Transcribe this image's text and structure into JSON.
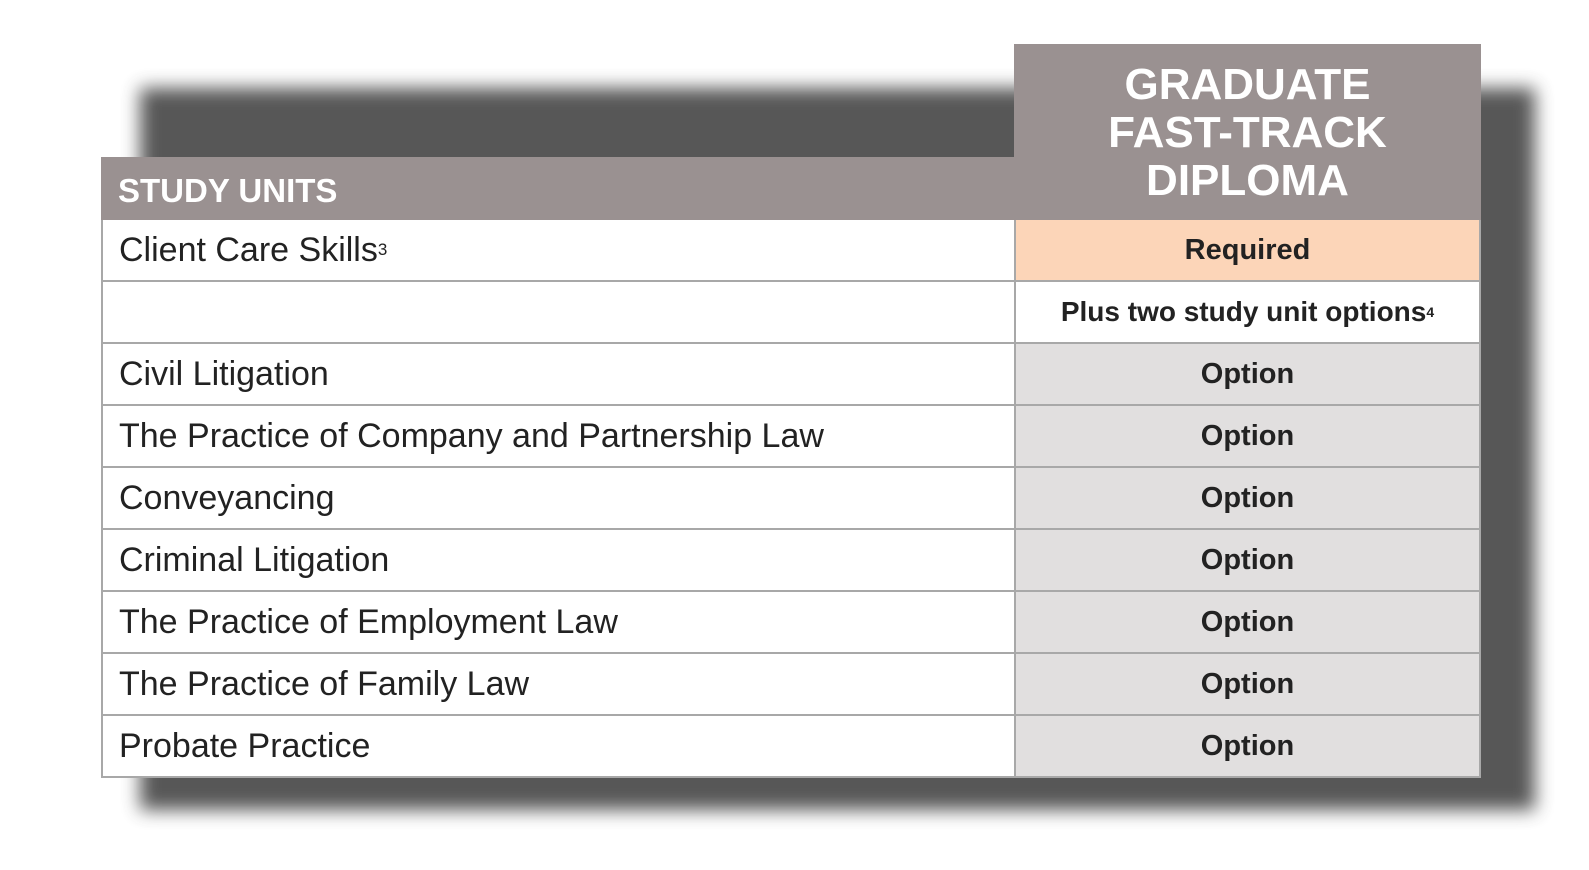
{
  "header": {
    "column_title": "GRADUATE\nFAST-TRACK\nDIPLOMA",
    "row_title": "STUDY UNITS"
  },
  "rows": [
    {
      "unit": "Client Care Skills",
      "unit_sup": "3",
      "status": "Required",
      "status_sup": "",
      "style": "required"
    },
    {
      "unit": "",
      "unit_sup": "",
      "status": "Plus two study unit options",
      "status_sup": "4",
      "style": "plain"
    },
    {
      "unit": "Civil Litigation",
      "unit_sup": "",
      "status": "Option",
      "status_sup": "",
      "style": "option"
    },
    {
      "unit": "The Practice of Company and Partnership Law",
      "unit_sup": "",
      "status": "Option",
      "status_sup": "",
      "style": "option"
    },
    {
      "unit": "Conveyancing",
      "unit_sup": "",
      "status": "Option",
      "status_sup": "",
      "style": "option"
    },
    {
      "unit": "Criminal Litigation",
      "unit_sup": "",
      "status": "Option",
      "status_sup": "",
      "style": "option"
    },
    {
      "unit": "The Practice of Employment Law",
      "unit_sup": "",
      "status": "Option",
      "status_sup": "",
      "style": "option"
    },
    {
      "unit": "The Practice of Family Law",
      "unit_sup": "",
      "status": "Option",
      "status_sup": "",
      "style": "option"
    },
    {
      "unit": "Probate Practice",
      "unit_sup": "",
      "status": "Option",
      "status_sup": "",
      "style": "option"
    }
  ],
  "colors": {
    "header_bg": "#9a9191",
    "required_bg": "#fcd5b8",
    "option_bg": "#e1dfdf",
    "border": "#a8a8a8"
  }
}
